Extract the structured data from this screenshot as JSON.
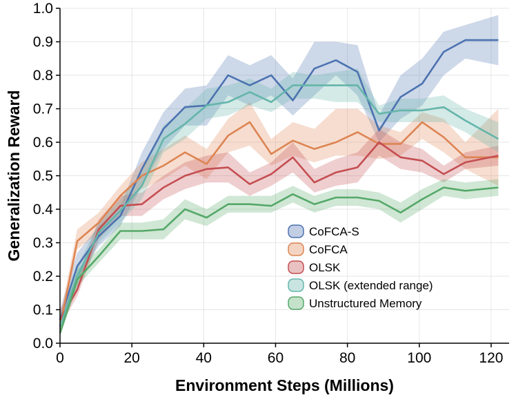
{
  "chart_data": {
    "type": "line",
    "title": "",
    "xlabel": "Environment Steps (Millions)",
    "ylabel": "Generalization Reward",
    "xlim": [
      0,
      125
    ],
    "ylim": [
      0,
      1.0
    ],
    "xticks": [
      0,
      20,
      40,
      60,
      80,
      100,
      120
    ],
    "yticks": [
      0.0,
      0.1,
      0.2,
      0.3,
      0.4,
      0.5,
      0.6,
      0.7,
      0.8,
      0.9,
      1.0
    ],
    "ytick_labels": [
      "0.0",
      "0.1",
      "0.2",
      "0.3",
      "0.4",
      "0.5",
      "0.6",
      "0.7",
      "0.8",
      "0.9",
      "1.0"
    ],
    "grid": true,
    "legend_position": "bottom-right",
    "x": [
      0,
      4.8,
      10.8,
      16.8,
      22.8,
      28.8,
      34.8,
      40.8,
      46.8,
      52.8,
      58.8,
      64.8,
      70.8,
      76.8,
      82.8,
      88.8,
      94.8,
      100.8,
      106.8,
      112.8,
      122
    ],
    "series": [
      {
        "name": "CoFCA-S",
        "color": "#4c72b0",
        "values": [
          0.07,
          0.23,
          0.32,
          0.38,
          0.52,
          0.64,
          0.705,
          0.71,
          0.8,
          0.77,
          0.8,
          0.725,
          0.82,
          0.845,
          0.81,
          0.635,
          0.735,
          0.775,
          0.87,
          0.905,
          0.905
        ],
        "lower": [
          0.04,
          0.19,
          0.29,
          0.35,
          0.47,
          0.58,
          0.65,
          0.65,
          0.74,
          0.71,
          0.74,
          0.68,
          0.74,
          0.8,
          0.74,
          0.6,
          0.67,
          0.71,
          0.8,
          0.85,
          0.83
        ],
        "upper": [
          0.1,
          0.27,
          0.35,
          0.41,
          0.57,
          0.69,
          0.76,
          0.77,
          0.86,
          0.83,
          0.86,
          0.79,
          0.9,
          0.9,
          0.89,
          0.68,
          0.8,
          0.85,
          0.93,
          0.95,
          0.98
        ]
      },
      {
        "name": "CoFCA",
        "color": "#dd8452",
        "values": [
          0.05,
          0.305,
          0.36,
          0.44,
          0.5,
          0.53,
          0.57,
          0.535,
          0.62,
          0.66,
          0.565,
          0.605,
          0.58,
          0.6,
          0.63,
          0.595,
          0.595,
          0.66,
          0.615,
          0.555,
          0.555
        ],
        "lower": [
          0.03,
          0.28,
          0.33,
          0.41,
          0.46,
          0.49,
          0.53,
          0.49,
          0.57,
          0.59,
          0.53,
          0.56,
          0.54,
          0.56,
          0.56,
          0.55,
          0.56,
          0.61,
          0.57,
          0.52,
          0.47
        ],
        "upper": [
          0.08,
          0.34,
          0.39,
          0.47,
          0.54,
          0.58,
          0.62,
          0.58,
          0.67,
          0.72,
          0.61,
          0.66,
          0.64,
          0.7,
          0.7,
          0.65,
          0.63,
          0.69,
          0.67,
          0.6,
          0.7
        ]
      },
      {
        "name": "OLSK",
        "color": "#c44e52",
        "values": [
          0.07,
          0.16,
          0.34,
          0.41,
          0.415,
          0.465,
          0.5,
          0.52,
          0.525,
          0.475,
          0.505,
          0.555,
          0.48,
          0.51,
          0.525,
          0.6,
          0.555,
          0.545,
          0.505,
          0.54,
          0.56
        ],
        "lower": [
          0.05,
          0.14,
          0.31,
          0.38,
          0.38,
          0.43,
          0.46,
          0.48,
          0.48,
          0.44,
          0.47,
          0.51,
          0.45,
          0.47,
          0.48,
          0.56,
          0.52,
          0.51,
          0.48,
          0.52,
          0.53
        ],
        "upper": [
          0.1,
          0.19,
          0.37,
          0.44,
          0.45,
          0.5,
          0.54,
          0.56,
          0.57,
          0.51,
          0.54,
          0.6,
          0.52,
          0.55,
          0.57,
          0.64,
          0.6,
          0.58,
          0.53,
          0.57,
          0.59
        ]
      },
      {
        "name": "OLSK (extended range)",
        "color": "#64b5aa",
        "values": [
          0.05,
          0.2,
          0.33,
          0.395,
          0.47,
          0.61,
          0.655,
          0.71,
          0.72,
          0.75,
          0.72,
          0.77,
          0.77,
          0.77,
          0.77,
          0.685,
          0.695,
          0.695,
          0.705,
          0.665,
          0.61
        ],
        "lower": [
          0.03,
          0.17,
          0.3,
          0.36,
          0.43,
          0.57,
          0.61,
          0.67,
          0.68,
          0.71,
          0.69,
          0.73,
          0.73,
          0.72,
          0.72,
          0.66,
          0.66,
          0.66,
          0.66,
          0.63,
          0.57
        ],
        "upper": [
          0.08,
          0.23,
          0.36,
          0.43,
          0.51,
          0.65,
          0.7,
          0.76,
          0.77,
          0.79,
          0.76,
          0.81,
          0.8,
          0.81,
          0.82,
          0.71,
          0.73,
          0.73,
          0.74,
          0.7,
          0.66
        ]
      },
      {
        "name": "Unstructured Memory",
        "color": "#55a868",
        "values": [
          0.03,
          0.19,
          0.26,
          0.335,
          0.335,
          0.34,
          0.4,
          0.375,
          0.415,
          0.415,
          0.41,
          0.445,
          0.415,
          0.435,
          0.435,
          0.425,
          0.39,
          0.43,
          0.465,
          0.455,
          0.465
        ],
        "lower": [
          0.02,
          0.17,
          0.24,
          0.31,
          0.31,
          0.31,
          0.37,
          0.35,
          0.39,
          0.39,
          0.39,
          0.42,
          0.39,
          0.41,
          0.41,
          0.4,
          0.36,
          0.4,
          0.44,
          0.43,
          0.44
        ],
        "upper": [
          0.05,
          0.22,
          0.28,
          0.36,
          0.36,
          0.37,
          0.43,
          0.4,
          0.44,
          0.44,
          0.44,
          0.47,
          0.44,
          0.46,
          0.46,
          0.45,
          0.42,
          0.46,
          0.49,
          0.48,
          0.49
        ]
      }
    ]
  }
}
